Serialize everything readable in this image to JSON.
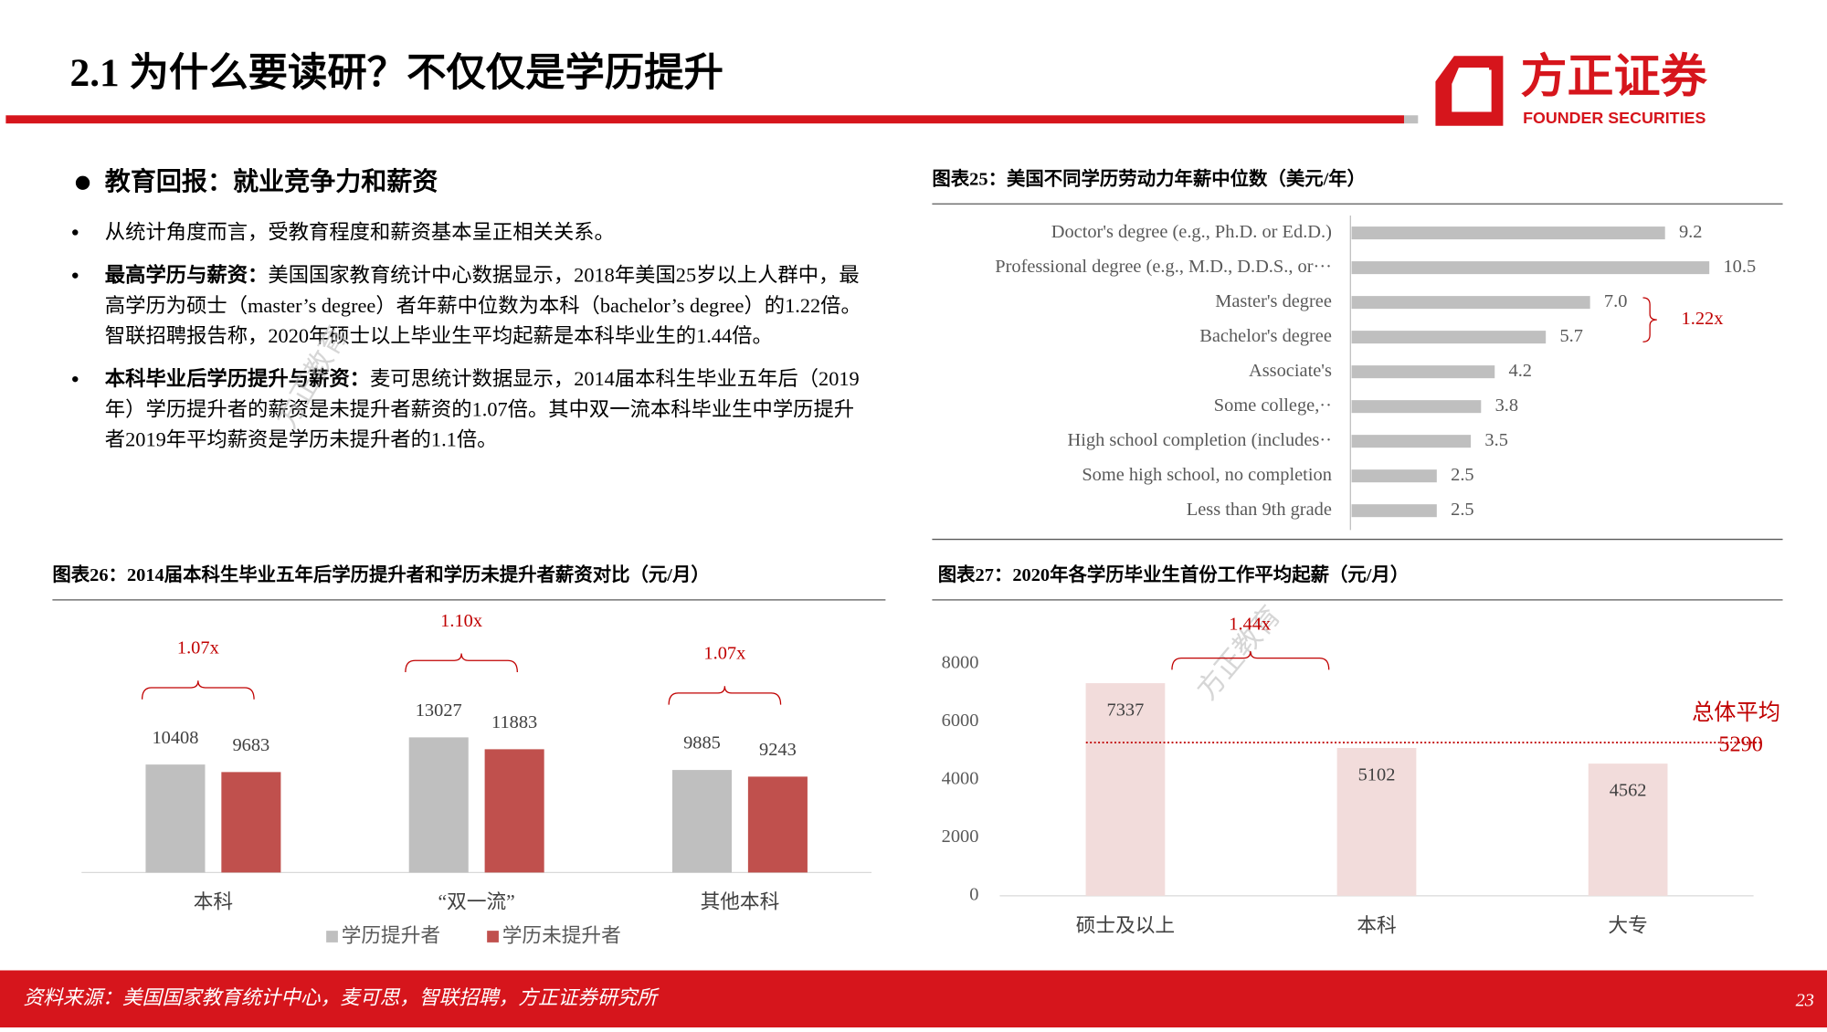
{
  "header": {
    "title": "2.1 为什么要读研？不仅仅是学历提升",
    "logo_cn": "方正证券",
    "logo_en": "FOUNDER SECURITIES"
  },
  "section": {
    "heading": "教育回报：就业竞争力和薪资",
    "bullets": [
      {
        "text": "从统计角度而言，受教育程度和薪资基本呈正相关关系。"
      },
      {
        "bold": "最高学历与薪资：",
        "text": "美国国家教育统计中心数据显示，2018年美国25岁以上人群中，最高学历为硕士（master’s degree）者年薪中位数为本科（bachelor’s degree）的1.22倍。智联招聘报告称，2020年硕士以上毕业生平均起薪是本科毕业生的1.44倍。"
      },
      {
        "bold": "本科毕业后学历提升与薪资：",
        "text": "麦可思统计数据显示，2014届本科生毕业五年后（2019年）学历提升者的薪资是未提升者薪资的1.07倍。其中双一流本科毕业生中学历提升者2019年平均薪资是学历未提升者的1.1倍。"
      }
    ]
  },
  "watermarks": [
    "方正教育",
    "方正教育"
  ],
  "chart_data": [
    {
      "type": "hbar",
      "title": "图表25：美国不同学历劳动力年薪中位数（美元/年）",
      "categories": [
        "Doctor's degree (e.g., Ph.D. or Ed.D.)",
        "Professional degree (e.g., M.D., D.D.S., or···",
        "Master's degree",
        "Bachelor's degree",
        "Associate's",
        "Some college,··",
        "High school completion (includes··",
        "Some high school, no completion",
        "Less than 9th grade"
      ],
      "values": [
        9.2,
        10.5,
        7,
        5.7,
        4.2,
        3.8,
        3.5,
        2.5,
        2.5
      ],
      "value_labels": [
        "9.2",
        "10.5",
        "7.0",
        "5.7",
        "4.2",
        "3.8",
        "3.5",
        "2.5",
        "2.5"
      ],
      "color": "#bfbfbf",
      "annotation": "1.22x"
    },
    {
      "type": "grouped_bar",
      "title": "图表26：2014届本科生毕业五年后学历提升者和学历未提升者薪资对比（元/月）",
      "categories": [
        "本科",
        "“双一流”",
        "其他本科"
      ],
      "series": [
        {
          "name": "学历提升者",
          "color": "#bfbfbf",
          "values": [
            10408,
            13027,
            9885
          ]
        },
        {
          "name": "学历未提升者",
          "color": "#c0504d",
          "values": [
            9683,
            11883,
            9243
          ]
        }
      ],
      "ratio_labels": [
        "1.07x",
        "1.10x",
        "1.07x"
      ]
    },
    {
      "type": "bar",
      "title": "图表27：2020年各学历毕业生首份工作平均起薪（元/月）",
      "categories": [
        "硕士及以上",
        "本科",
        "大专"
      ],
      "values": [
        7337,
        5102,
        4562
      ],
      "color": "#f2dcdb",
      "ylim": [
        0,
        8000
      ],
      "yticks": [
        0,
        2000,
        4000,
        6000,
        8000
      ],
      "reference": {
        "label": "总体平均",
        "value": 5290
      },
      "annotation": "1.44x"
    }
  ],
  "footer": {
    "source": "资料来源：美国国家教育统计中心，麦可思，智联招聘，方正证券研究所",
    "page": "23"
  }
}
